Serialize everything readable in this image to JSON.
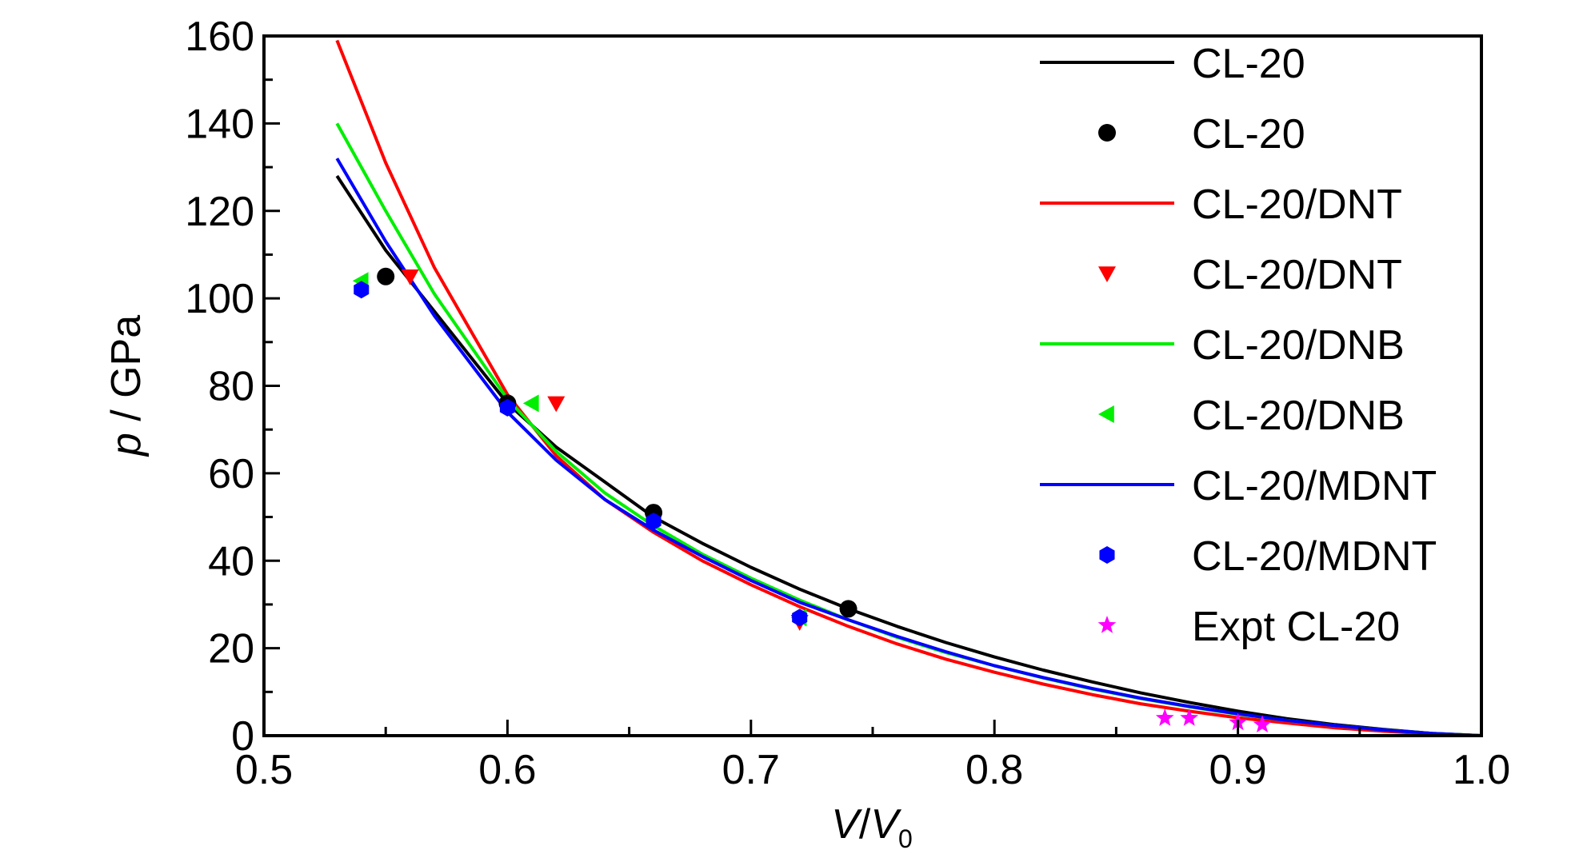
{
  "chart_data": {
    "type": "line",
    "xlabel": {
      "v": "V",
      "sep": "/",
      "v0": "V",
      "sub": "0"
    },
    "ylabel": {
      "p": "p",
      "rest": " / GPa"
    },
    "xlim": [
      0.5,
      1.0
    ],
    "ylim": [
      0,
      160
    ],
    "x_ticks": [
      "0.5",
      "0.6",
      "0.7",
      "0.8",
      "0.9",
      "1.0"
    ],
    "y_ticks": [
      "0",
      "20",
      "40",
      "60",
      "80",
      "100",
      "120",
      "140",
      "160"
    ],
    "legend_position": "top-right",
    "series": [
      {
        "name": "CL-20",
        "kind": "line",
        "color": "#000000",
        "x": [
          0.53,
          0.55,
          0.57,
          0.6,
          0.62,
          0.64,
          0.66,
          0.68,
          0.7,
          0.72,
          0.74,
          0.76,
          0.78,
          0.8,
          0.82,
          0.84,
          0.86,
          0.88,
          0.9,
          0.92,
          0.94,
          0.96,
          0.98,
          1.0
        ],
        "y": [
          128,
          111,
          97,
          76,
          66,
          58,
          50,
          44,
          38.5,
          33.5,
          29,
          25,
          21.3,
          18,
          15,
          12.3,
          9.8,
          7.6,
          5.6,
          3.9,
          2.5,
          1.4,
          0.5,
          0
        ]
      },
      {
        "name": "CL-20",
        "kind": "marker",
        "marker": "circle",
        "color": "#000000",
        "x": [
          0.55,
          0.6,
          0.66,
          0.74
        ],
        "y": [
          105,
          76,
          51,
          29
        ]
      },
      {
        "name": "CL-20/DNT",
        "kind": "line",
        "color": "#ff0000",
        "x": [
          0.53,
          0.55,
          0.57,
          0.6,
          0.62,
          0.64,
          0.66,
          0.68,
          0.7,
          0.72,
          0.74,
          0.76,
          0.78,
          0.8,
          0.82,
          0.84,
          0.86,
          0.88,
          0.9,
          0.92,
          0.94,
          0.96,
          0.98,
          1.0
        ],
        "y": [
          159,
          131,
          107,
          78,
          64,
          54,
          46.5,
          40,
          34.5,
          29.5,
          25,
          21,
          17.5,
          14.5,
          11.8,
          9.4,
          7.3,
          5.6,
          4.1,
          2.9,
          1.8,
          1,
          0.4,
          0
        ]
      },
      {
        "name": "CL-20/DNT",
        "kind": "marker",
        "marker": "triangle-down",
        "color": "#ff0000",
        "x": [
          0.56,
          0.62,
          0.72
        ],
        "y": [
          105,
          76,
          26
        ]
      },
      {
        "name": "CL-20/DNB",
        "kind": "line",
        "color": "#00ee00",
        "x": [
          0.53,
          0.55,
          0.57,
          0.6,
          0.62,
          0.64,
          0.66,
          0.68,
          0.7,
          0.72,
          0.74,
          0.76,
          0.78,
          0.8,
          0.82,
          0.84,
          0.86,
          0.88,
          0.9,
          0.92,
          0.94,
          0.96,
          0.98,
          1.0
        ],
        "y": [
          140,
          120,
          101,
          77,
          65,
          55.5,
          48,
          41.5,
          36,
          31,
          26.5,
          22.5,
          19,
          16,
          13.2,
          10.7,
          8.5,
          6.6,
          4.9,
          3.5,
          2.3,
          1.3,
          0.5,
          0
        ]
      },
      {
        "name": "CL-20/DNB",
        "kind": "marker",
        "marker": "triangle-left",
        "color": "#00ee00",
        "x": [
          0.54,
          0.61,
          0.72
        ],
        "y": [
          104,
          76,
          27
        ]
      },
      {
        "name": "CL-20/MDNT",
        "kind": "line",
        "color": "#0000ff",
        "x": [
          0.53,
          0.55,
          0.57,
          0.6,
          0.62,
          0.64,
          0.66,
          0.68,
          0.7,
          0.72,
          0.74,
          0.76,
          0.78,
          0.8,
          0.82,
          0.84,
          0.86,
          0.88,
          0.9,
          0.92,
          0.94,
          0.96,
          0.98,
          1.0
        ],
        "y": [
          132,
          113,
          96,
          74,
          63,
          54,
          47,
          41,
          35.5,
          30.5,
          26.5,
          22.7,
          19.2,
          16,
          13.3,
          10.8,
          8.6,
          6.7,
          5,
          3.5,
          2.3,
          1.3,
          0.5,
          0
        ]
      },
      {
        "name": "CL-20/MDNT",
        "kind": "marker",
        "marker": "hexagon",
        "color": "#0000ff",
        "x": [
          0.54,
          0.6,
          0.66,
          0.72
        ],
        "y": [
          102,
          75,
          49,
          27
        ]
      },
      {
        "name": "Expt CL-20",
        "kind": "marker",
        "marker": "star",
        "color": "#ff00ff",
        "x": [
          0.87,
          0.88,
          0.9,
          0.91
        ],
        "y": [
          4,
          4,
          3,
          2.5
        ]
      }
    ]
  }
}
